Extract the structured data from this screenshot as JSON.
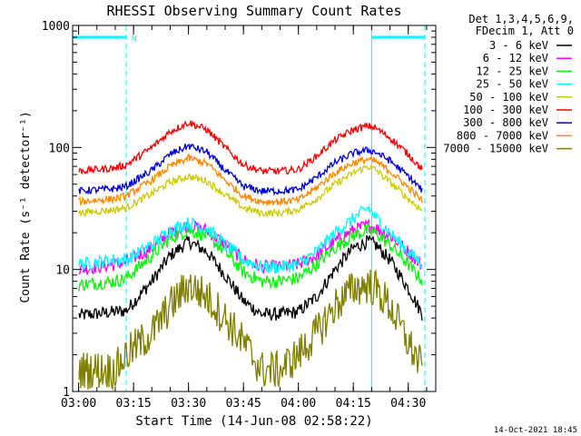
{
  "chart_data": {
    "type": "line",
    "title": "RHESSI Observing Summary Count Rates",
    "xlabel": "Start Time (14-Jun-08 02:58:22)",
    "ylabel": "Count Rate (s⁻¹ detector⁻¹)",
    "x_scale": "time",
    "y_scale": "log",
    "xlim": [
      "02:58:22",
      "04:37:30"
    ],
    "ylim": [
      1,
      1000
    ],
    "x_ticks": [
      "03:00",
      "03:15",
      "03:30",
      "03:45",
      "04:00",
      "04:15",
      "04:30"
    ],
    "y_ticks": [
      "1",
      "10",
      "100",
      "1000"
    ],
    "legend_position": "right",
    "legend_header": [
      "Det 1,3,4,5,6,9,",
      "FDecim 1, Att 0"
    ],
    "series": [
      {
        "name": "3 - 6 keV",
        "color": "#000000",
        "x": [
          "03:00",
          "03:10",
          "03:13",
          "03:20",
          "03:25",
          "03:30",
          "03:35",
          "03:40",
          "03:45",
          "03:50",
          "03:55",
          "04:00",
          "04:05",
          "04:10",
          "04:15",
          "04:19",
          "04:21",
          "04:25",
          "04:30",
          "04:34"
        ],
        "y": [
          4.2,
          4.5,
          4.6,
          8,
          13,
          17,
          14,
          9,
          5.5,
          4.3,
          4.3,
          4.5,
          6,
          10,
          15,
          17,
          16,
          12,
          7,
          4.2
        ]
      },
      {
        "name": "6 - 12 keV",
        "color": "#ff00ff",
        "x": [
          "03:00",
          "03:10",
          "03:13",
          "03:20",
          "03:25",
          "03:30",
          "03:35",
          "03:40",
          "03:45",
          "03:50",
          "03:55",
          "04:00",
          "04:05",
          "04:10",
          "04:15",
          "04:19",
          "04:21",
          "04:25",
          "04:30",
          "04:34"
        ],
        "y": [
          10,
          11,
          11.5,
          15,
          20,
          23,
          21,
          16,
          12,
          10.5,
          10.5,
          11,
          13,
          17,
          21,
          23,
          22,
          19,
          14,
          10.5
        ]
      },
      {
        "name": "12 - 25 keV",
        "color": "#00ff00",
        "x": [
          "03:00",
          "03:10",
          "03:13",
          "03:20",
          "03:25",
          "03:30",
          "03:35",
          "03:40",
          "03:45",
          "03:50",
          "03:55",
          "04:00",
          "04:05",
          "04:10",
          "04:15",
          "04:19",
          "04:21",
          "04:25",
          "04:30",
          "04:34"
        ],
        "y": [
          7.5,
          8,
          8.5,
          13,
          18,
          21,
          19,
          14,
          9.5,
          8,
          8,
          8.5,
          11,
          15,
          19,
          21,
          20,
          16,
          11,
          8
        ]
      },
      {
        "name": "25 - 50 keV",
        "color": "#00ffff",
        "x": [
          "03:00",
          "03:10",
          "03:13",
          "03:20",
          "03:25",
          "03:30",
          "03:35",
          "03:40",
          "03:45",
          "03:50",
          "03:55",
          "04:00",
          "04:05",
          "04:10",
          "04:15",
          "04:19",
          "04:21",
          "04:25",
          "04:30",
          "04:34"
        ],
        "y": [
          11,
          12,
          12,
          16,
          21,
          24,
          22,
          16,
          12,
          10.5,
          10.5,
          11,
          14,
          20,
          26,
          32,
          27,
          20,
          14,
          11
        ]
      },
      {
        "name": "50 - 100 keV",
        "color": "#cccc00",
        "x": [
          "03:00",
          "03:10",
          "03:13",
          "03:20",
          "03:25",
          "03:30",
          "03:35",
          "03:40",
          "03:45",
          "03:50",
          "03:55",
          "04:00",
          "04:05",
          "04:10",
          "04:15",
          "04:19",
          "04:21",
          "04:25",
          "04:30",
          "04:34"
        ],
        "y": [
          29,
          31,
          32,
          42,
          52,
          58,
          53,
          41,
          32,
          29,
          29,
          31,
          38,
          50,
          62,
          70,
          66,
          52,
          38,
          30
        ]
      },
      {
        "name": "100 - 300 keV",
        "color": "#ff0000",
        "x": [
          "03:00",
          "03:10",
          "03:13",
          "03:20",
          "03:25",
          "03:30",
          "03:35",
          "03:40",
          "03:45",
          "03:50",
          "03:55",
          "04:00",
          "04:05",
          "04:10",
          "04:15",
          "04:19",
          "04:21",
          "04:25",
          "04:30",
          "04:34"
        ],
        "y": [
          64,
          68,
          72,
          100,
          135,
          160,
          140,
          100,
          72,
          64,
          64,
          66,
          85,
          115,
          140,
          150,
          145,
          120,
          88,
          65
        ]
      },
      {
        "name": "300 - 800 keV",
        "color": "#0000dd",
        "x": [
          "03:00",
          "03:10",
          "03:13",
          "03:20",
          "03:25",
          "03:30",
          "03:35",
          "03:40",
          "03:45",
          "03:50",
          "03:55",
          "04:00",
          "04:05",
          "04:10",
          "04:15",
          "04:19",
          "04:21",
          "04:25",
          "04:30",
          "04:34"
        ],
        "y": [
          44,
          46,
          48,
          65,
          88,
          103,
          92,
          65,
          48,
          44,
          44,
          45,
          57,
          75,
          90,
          95,
          92,
          78,
          58,
          44
        ]
      },
      {
        "name": "800 - 7000 keV",
        "color": "#ff8800",
        "x": [
          "03:00",
          "03:10",
          "03:13",
          "03:20",
          "03:25",
          "03:30",
          "03:35",
          "03:40",
          "03:45",
          "03:50",
          "03:55",
          "04:00",
          "04:05",
          "04:10",
          "04:15",
          "04:19",
          "04:21",
          "04:25",
          "04:30",
          "04:34"
        ],
        "y": [
          36,
          38,
          40,
          54,
          70,
          82,
          74,
          54,
          40,
          36,
          36,
          37,
          47,
          62,
          75,
          80,
          77,
          64,
          47,
          36
        ]
      },
      {
        "name": "7000 - 15000 keV",
        "color": "#808000",
        "x": [
          "03:00",
          "03:10",
          "03:13",
          "03:20",
          "03:25",
          "03:30",
          "03:35",
          "03:40",
          "03:45",
          "03:50",
          "03:55",
          "04:00",
          "04:05",
          "04:10",
          "04:15",
          "04:19",
          "04:21",
          "04:25",
          "04:30",
          "04:34"
        ],
        "y": [
          1.5,
          1.5,
          2,
          3,
          5,
          7.5,
          6,
          4,
          2.5,
          1.5,
          1.5,
          2,
          3,
          5,
          7,
          7.5,
          7,
          5,
          2.5,
          1.5
        ]
      }
    ],
    "annotations": [
      {
        "type": "vline",
        "x": "02:58:22",
        "color": "#00ffff",
        "style": "solid"
      },
      {
        "type": "vline",
        "x": "03:13:00",
        "color": "#00ffff",
        "style": "dashed"
      },
      {
        "type": "vline",
        "x": "04:20:00",
        "color": "#00ffff",
        "style": "solid"
      },
      {
        "type": "vline",
        "x": "04:34:30",
        "color": "#00ffff",
        "style": "dashed"
      },
      {
        "type": "bar",
        "x_start": "02:58:22",
        "x_end": "03:13:00",
        "y": 800,
        "color": "#00ffff",
        "label": "N"
      },
      {
        "type": "bar",
        "x_start": "04:20:00",
        "x_end": "04:34:30",
        "y": 800,
        "color": "#00ffff",
        "label": ""
      }
    ]
  },
  "footer": {
    "timestamp": "14-Oct-2021 18:45"
  },
  "colors": {
    "background": "#ffffff",
    "axes": "#000000",
    "annotation": "#00ffff"
  }
}
